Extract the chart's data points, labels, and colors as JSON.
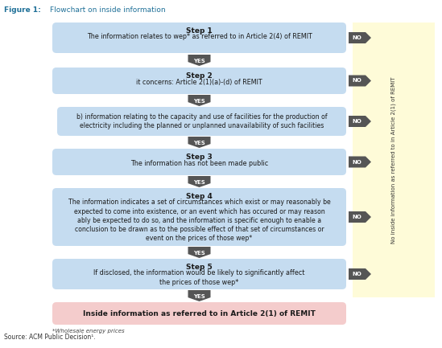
{
  "title": "Figure 1:",
  "subtitle": "Flowchart on inside information",
  "title_color": "#1F7098",
  "box_blue": "#C5DCF0",
  "box_blue2": "#BDD7EE",
  "box_pink": "#F4CCCC",
  "box_yellow": "#FEFBD8",
  "arrow_dark": "#555555",
  "text_dark": "#1A1A1A",
  "step1_label": "Step 1",
  "step1_text": "The information relates to wep* as referred to in Article 2(4) of REMIT",
  "step2_label": "Step 2",
  "step2_text": "it concerns: Article 2(1)(a)-(d) of REMIT",
  "step2b_text": "b) information relating to the capacity and use of facilities for the production of\nelectricity including the planned or unplanned unavailability of such facilities",
  "step3_label": "Step 3",
  "step3_text": "The information has not been made public",
  "step4_label": "Step 4",
  "step4_text": "The information indicates a set of circumstances which exist or may reasonably be\nexpected to come into existence, or an event which has occured or may reason\nably be expected to do so, and the information is specific enough to enable a\nconclusion to be drawn as to the possible effect of that set of circumstances or\nevent on the prices of those wep*",
  "step5_label": "Step 5",
  "step5_text": "If disclosed, the information would be likely to significantly affect\nthe prices of those wep*",
  "final_text": "Inside information as referred to in Article 2(1) of REMIT",
  "footnote": "*Wholesale energy prices",
  "source": "Source: ACM Public Decision¹.",
  "sidebar_text": "No inside information as referred to in Article 2(1) of REMIT",
  "fig_label": "Figure 1:",
  "fig_subtitle": "Flowchart on inside information"
}
